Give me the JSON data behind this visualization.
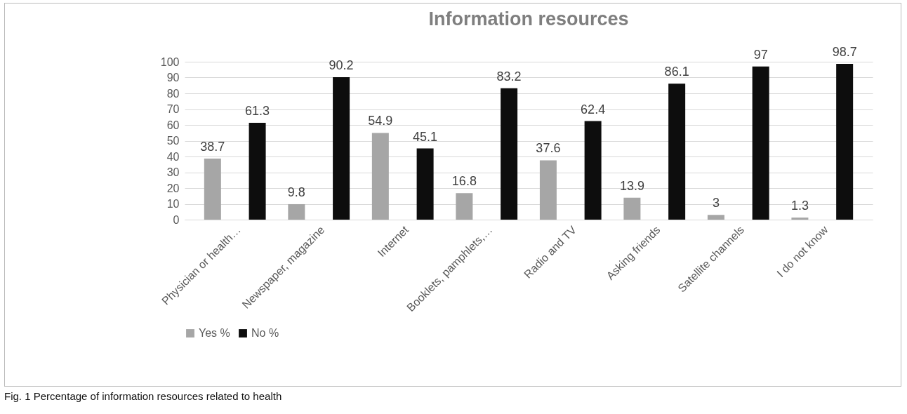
{
  "chart_data": {
    "type": "bar",
    "title": "Information resources",
    "categories": [
      "Physician or health…",
      "Newspaper, magazine",
      "Internet",
      "Booklets, pamphlets,…",
      "Radio and TV",
      "Asking friends",
      "Satellite channels",
      "I do not know"
    ],
    "series": [
      {
        "name": "Yes %",
        "color": "#a6a6a6",
        "values": [
          38.7,
          9.8,
          54.9,
          16.8,
          37.6,
          13.9,
          3,
          1.3
        ]
      },
      {
        "name": "No %",
        "color": "#0d0d0d",
        "values": [
          61.3,
          90.2,
          45.1,
          83.2,
          62.4,
          86.1,
          97,
          98.7
        ]
      }
    ],
    "ylim": [
      0,
      100
    ],
    "yticks": [
      0,
      10,
      20,
      30,
      40,
      50,
      60,
      70,
      80,
      90,
      100
    ],
    "grid": "y",
    "legend": "bottom",
    "data_labels": true,
    "annotations": [
      "Fig. 1 Percentage of information resources related to health"
    ]
  }
}
